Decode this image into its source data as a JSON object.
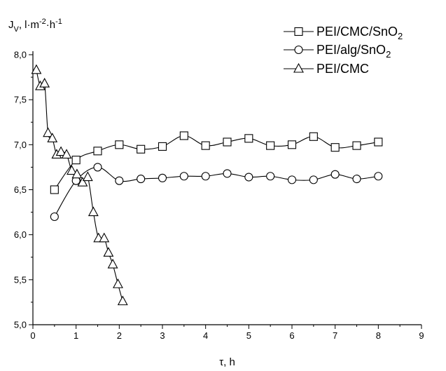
{
  "chart_data": {
    "type": "line",
    "title": "",
    "ylabel_parts": [
      "J",
      "V",
      ", l·m",
      "-2",
      "·h",
      "-1"
    ],
    "xlabel": "τ, h",
    "xlim": [
      0,
      9
    ],
    "ylim": [
      5.0,
      8.0
    ],
    "x_ticks": [
      "0",
      "1",
      "2",
      "3",
      "4",
      "5",
      "6",
      "7",
      "8",
      "9"
    ],
    "y_ticks": [
      "5,0",
      "5,5",
      "6,0",
      "6,5",
      "7,0",
      "7,5",
      "8,0"
    ],
    "legend_position": "top-right",
    "grid": false,
    "series": [
      {
        "name_parts": [
          "PEI/CMC/SnO",
          "2"
        ],
        "marker": "square",
        "points": [
          [
            0.5,
            6.5
          ],
          [
            1.0,
            6.83
          ],
          [
            1.5,
            6.93
          ],
          [
            2.0,
            7.0
          ],
          [
            2.5,
            6.95
          ],
          [
            3.0,
            6.98
          ],
          [
            3.5,
            7.1
          ],
          [
            4.0,
            6.99
          ],
          [
            4.5,
            7.03
          ],
          [
            5.0,
            7.07
          ],
          [
            5.5,
            6.99
          ],
          [
            6.0,
            7.0
          ],
          [
            6.5,
            7.09
          ],
          [
            7.0,
            6.97
          ],
          [
            7.5,
            6.99
          ],
          [
            8.0,
            7.03
          ]
        ]
      },
      {
        "name_parts": [
          "PEI/alg/SnO",
          "2"
        ],
        "marker": "circle",
        "points": [
          [
            0.5,
            6.2
          ],
          [
            1.0,
            6.6
          ],
          [
            1.5,
            6.75
          ],
          [
            2.0,
            6.6
          ],
          [
            2.5,
            6.62
          ],
          [
            3.0,
            6.63
          ],
          [
            3.5,
            6.65
          ],
          [
            4.0,
            6.65
          ],
          [
            4.5,
            6.68
          ],
          [
            5.0,
            6.64
          ],
          [
            5.5,
            6.65
          ],
          [
            6.0,
            6.61
          ],
          [
            6.5,
            6.61
          ],
          [
            7.0,
            6.67
          ],
          [
            7.5,
            6.62
          ],
          [
            8.0,
            6.65
          ]
        ]
      },
      {
        "name_parts": [
          "PEI/CMC"
        ],
        "marker": "triangle",
        "points": [
          [
            0.08,
            7.83
          ],
          [
            0.17,
            7.65
          ],
          [
            0.27,
            7.68
          ],
          [
            0.35,
            7.13
          ],
          [
            0.45,
            7.07
          ],
          [
            0.55,
            6.89
          ],
          [
            0.65,
            6.92
          ],
          [
            0.78,
            6.89
          ],
          [
            0.9,
            6.71
          ],
          [
            1.02,
            6.67
          ],
          [
            1.15,
            6.58
          ],
          [
            1.27,
            6.64
          ],
          [
            1.4,
            6.25
          ],
          [
            1.52,
            5.96
          ],
          [
            1.65,
            5.96
          ],
          [
            1.75,
            5.8
          ],
          [
            1.85,
            5.67
          ],
          [
            1.97,
            5.45
          ],
          [
            2.08,
            5.26
          ]
        ]
      }
    ]
  }
}
